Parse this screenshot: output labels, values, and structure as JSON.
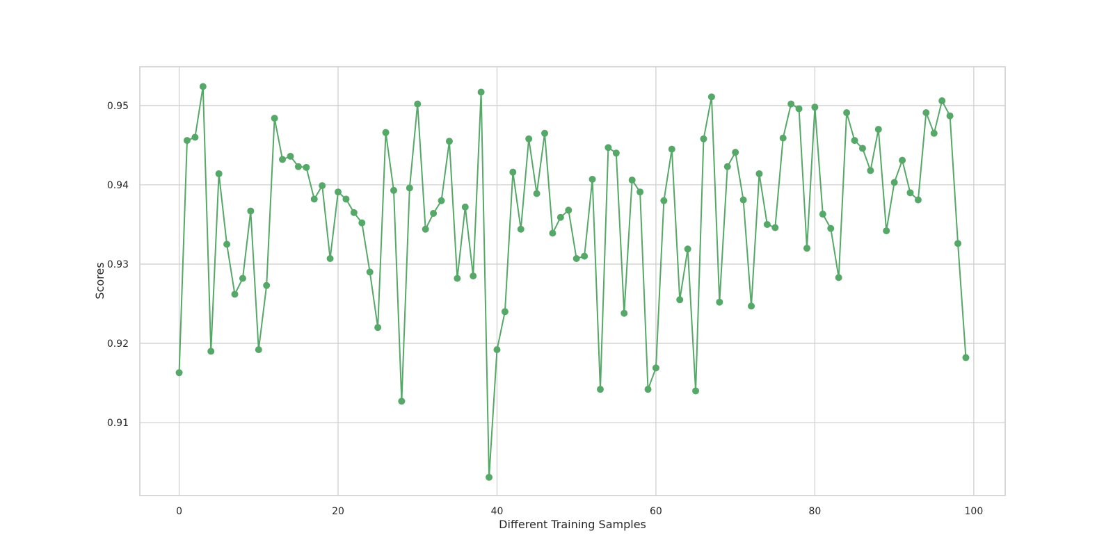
{
  "chart_data": {
    "type": "line",
    "title": "",
    "xlabel": "Different Training Samples",
    "ylabel": "Scores",
    "xlim": [
      -4.95,
      103.95
    ],
    "ylim": [
      0.9008,
      0.9549
    ],
    "x_ticks": [
      0,
      20,
      40,
      60,
      80,
      100
    ],
    "y_ticks": [
      0.91,
      0.92,
      0.93,
      0.94,
      0.95
    ],
    "x_tick_labels": [
      "0",
      "20",
      "40",
      "60",
      "80",
      "100"
    ],
    "y_tick_labels": [
      "0.91",
      "0.92",
      "0.93",
      "0.94",
      "0.95"
    ],
    "grid": true,
    "legend": "none",
    "series": [
      {
        "color": "#55a868",
        "marker": "circle",
        "x": [
          0,
          1,
          2,
          3,
          4,
          5,
          6,
          7,
          8,
          9,
          10,
          11,
          12,
          13,
          14,
          15,
          16,
          17,
          18,
          19,
          20,
          21,
          22,
          23,
          24,
          25,
          26,
          27,
          28,
          29,
          30,
          31,
          32,
          33,
          34,
          35,
          36,
          37,
          38,
          39,
          40,
          41,
          42,
          43,
          44,
          45,
          46,
          47,
          48,
          49,
          50,
          51,
          52,
          53,
          54,
          55,
          56,
          57,
          58,
          59,
          60,
          61,
          62,
          63,
          64,
          65,
          66,
          67,
          68,
          69,
          70,
          71,
          72,
          73,
          74,
          75,
          76,
          77,
          78,
          79,
          80,
          81,
          82,
          83,
          84,
          85,
          86,
          87,
          88,
          89,
          90,
          91,
          92,
          93,
          94,
          95,
          96,
          97,
          98,
          99
        ],
        "values": [
          0.9163,
          0.9456,
          0.946,
          0.9524,
          0.919,
          0.9414,
          0.9325,
          0.9262,
          0.9282,
          0.9367,
          0.9192,
          0.9273,
          0.9484,
          0.9432,
          0.9436,
          0.9423,
          0.9422,
          0.9382,
          0.9399,
          0.9307,
          0.9391,
          0.9382,
          0.9365,
          0.9352,
          0.929,
          0.922,
          0.9466,
          0.9393,
          0.9127,
          0.9396,
          0.9502,
          0.9344,
          0.9364,
          0.938,
          0.9455,
          0.9282,
          0.9372,
          0.9285,
          0.9517,
          0.9031,
          0.9192,
          0.924,
          0.9416,
          0.9344,
          0.9458,
          0.9389,
          0.9465,
          0.9339,
          0.9359,
          0.9368,
          0.9307,
          0.931,
          0.9407,
          0.9142,
          0.9447,
          0.944,
          0.9238,
          0.9406,
          0.9391,
          0.9142,
          0.9169,
          0.938,
          0.9445,
          0.9255,
          0.9319,
          0.914,
          0.9458,
          0.9511,
          0.9252,
          0.9423,
          0.9441,
          0.9381,
          0.9247,
          0.9414,
          0.935,
          0.9346,
          0.9459,
          0.9502,
          0.9496,
          0.932,
          0.9498,
          0.9363,
          0.9345,
          0.9283,
          0.9491,
          0.9456,
          0.9446,
          0.9418,
          0.947,
          0.9342,
          0.9403,
          0.9431,
          0.939,
          0.9381,
          0.9491,
          0.9465,
          0.9506,
          0.9487,
          0.9326,
          0.9182
        ]
      }
    ]
  }
}
